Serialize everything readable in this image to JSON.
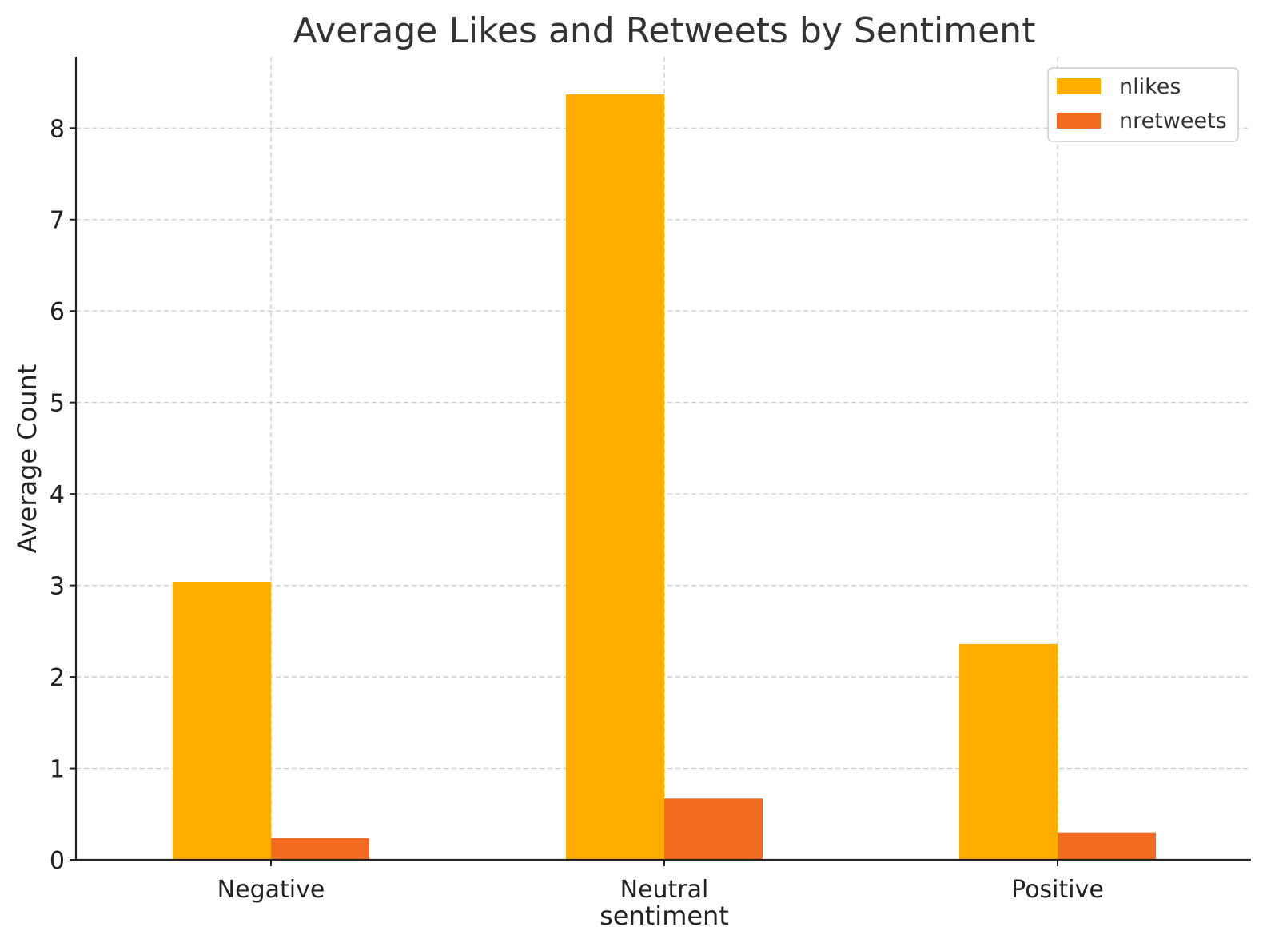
{
  "chart_data": {
    "type": "bar",
    "title": "Average Likes and Retweets by Sentiment",
    "xlabel": "sentiment",
    "ylabel": "Average Count",
    "categories": [
      "Negative",
      "Neutral",
      "Positive"
    ],
    "series": [
      {
        "name": "nlikes",
        "color": "#FFAE00",
        "values": [
          3.04,
          8.37,
          2.36
        ]
      },
      {
        "name": "nretweets",
        "color": "#F26B21",
        "values": [
          0.24,
          0.67,
          0.3
        ]
      }
    ],
    "ylim": [
      0,
      8.78
    ],
    "yticks": [
      0,
      1,
      2,
      3,
      4,
      5,
      6,
      7,
      8
    ],
    "grid": true,
    "legend_position": "top-right"
  }
}
